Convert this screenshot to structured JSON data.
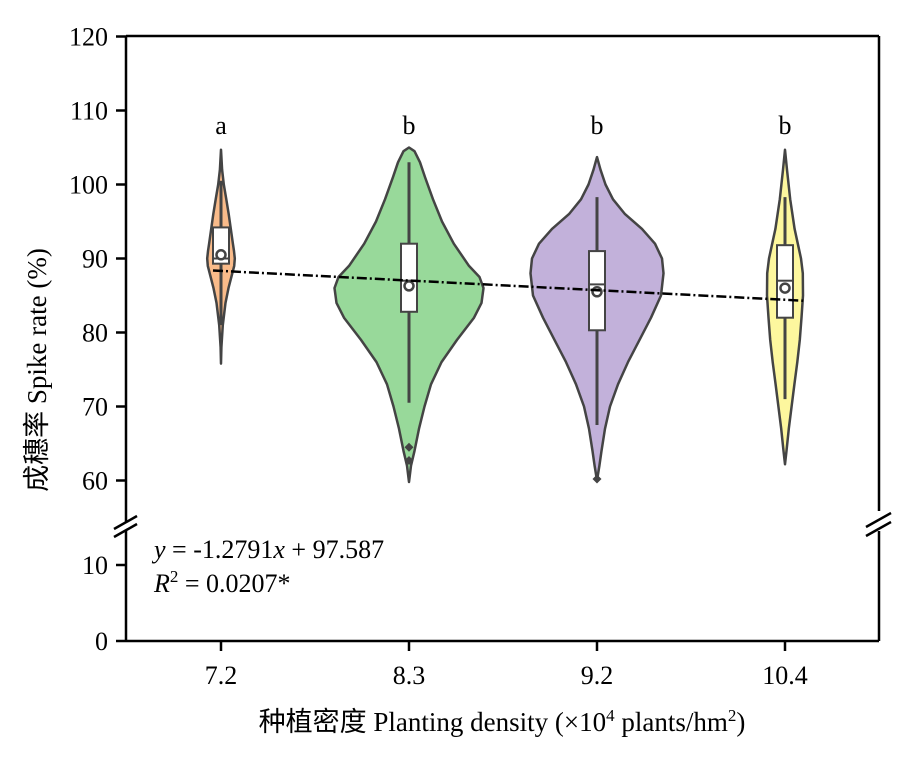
{
  "chart_data": {
    "type": "violin",
    "xlabel": "种植密度 Planting density (×10",
    "xlabel_sup": "4",
    "xlabel_tail": " plants/hm",
    "xlabel_sup2": "2",
    "xlabel_end": ")",
    "ylabel": "成穗率 Spike rate (%)",
    "categories": [
      "7.2",
      "8.3",
      "9.2",
      "10.4"
    ],
    "x_values": [
      7.2,
      8.3,
      9.2,
      10.4
    ],
    "yticks_upper": [
      "60",
      "70",
      "80",
      "90",
      "100",
      "110",
      "120"
    ],
    "yticks_lower": [
      "0",
      "10"
    ],
    "ylim_upper": [
      55,
      120
    ],
    "ylim_lower": [
      0,
      15
    ],
    "colors": [
      "#F9BB8A",
      "#98D99A",
      "#C2B1DA",
      "#FDF79E"
    ],
    "letters": [
      "a",
      "b",
      "b",
      "b"
    ],
    "groups": [
      {
        "category": "7.2",
        "q1": 89.3,
        "median": 90.0,
        "q3": 94.2,
        "mean": 90.5,
        "whisker_low": 81.0,
        "whisker_high": 100.5,
        "outliers": [],
        "violin_min": 75.8,
        "violin_max": 104.7,
        "density": [
          [
            75.8,
            0
          ],
          [
            78,
            0.4
          ],
          [
            81,
            1.8
          ],
          [
            84,
            4.5
          ],
          [
            86,
            7.5
          ],
          [
            88,
            11.3
          ],
          [
            89,
            13.2
          ],
          [
            90,
            13.8
          ],
          [
            91,
            13.0
          ],
          [
            92,
            11.9
          ],
          [
            94,
            9.8
          ],
          [
            96,
            7.7
          ],
          [
            98,
            5.3
          ],
          [
            100,
            2.8
          ],
          [
            102,
            1.1
          ],
          [
            104.7,
            0
          ]
        ]
      },
      {
        "category": "8.3",
        "q1": 82.8,
        "median": 87.0,
        "q3": 92.0,
        "mean": 86.3,
        "whisker_low": 70.5,
        "whisker_high": 103.0,
        "outliers": [
          64.5,
          62.7
        ],
        "violin_min": 59.8,
        "violin_max": 105.0,
        "density": [
          [
            59.8,
            0
          ],
          [
            62,
            2
          ],
          [
            64,
            5.5
          ],
          [
            67,
            10
          ],
          [
            70,
            15.5
          ],
          [
            73,
            22
          ],
          [
            76,
            32.5
          ],
          [
            79,
            48
          ],
          [
            82,
            65
          ],
          [
            84,
            72.5
          ],
          [
            86,
            74.5
          ],
          [
            87.5,
            70.5
          ],
          [
            89,
            60
          ],
          [
            92,
            44.8
          ],
          [
            95,
            33
          ],
          [
            98,
            24
          ],
          [
            101,
            16
          ],
          [
            103,
            11
          ],
          [
            104.5,
            5.5
          ],
          [
            105,
            0
          ]
        ]
      },
      {
        "category": "9.2",
        "q1": 80.3,
        "median": 86.5,
        "q3": 91.0,
        "mean": 85.5,
        "whisker_low": 67.5,
        "whisker_high": 98.3,
        "outliers": [
          60.2
        ],
        "violin_min": 60.0,
        "violin_max": 103.7,
        "density": [
          [
            60,
            0
          ],
          [
            62,
            2.4
          ],
          [
            64,
            4.5
          ],
          [
            67,
            8
          ],
          [
            70,
            13
          ],
          [
            73,
            21
          ],
          [
            76,
            31
          ],
          [
            79,
            42.5
          ],
          [
            82,
            54
          ],
          [
            85,
            64
          ],
          [
            88,
            66.5
          ],
          [
            90,
            65
          ],
          [
            92,
            58
          ],
          [
            94,
            45
          ],
          [
            96,
            28
          ],
          [
            98,
            16
          ],
          [
            100,
            8.5
          ],
          [
            102,
            3.5
          ],
          [
            103.7,
            0
          ]
        ]
      },
      {
        "category": "10.4",
        "q1": 82.0,
        "median": 87.0,
        "q3": 91.8,
        "mean": 86.0,
        "whisker_low": 71.0,
        "whisker_high": 98.3,
        "outliers": [],
        "violin_min": 62.2,
        "violin_max": 104.7,
        "density": [
          [
            62.2,
            0
          ],
          [
            64,
            1.5
          ],
          [
            67,
            3.8
          ],
          [
            70,
            6.6
          ],
          [
            73,
            9.4
          ],
          [
            76,
            12.3
          ],
          [
            79,
            14.8
          ],
          [
            82,
            16.5
          ],
          [
            85,
            18
          ],
          [
            88,
            17.8
          ],
          [
            90,
            16
          ],
          [
            92,
            12.8
          ],
          [
            94,
            9.6
          ],
          [
            96,
            7.4
          ],
          [
            98,
            5.2
          ],
          [
            100,
            3.6
          ],
          [
            102,
            2
          ],
          [
            104.7,
            0
          ]
        ]
      }
    ],
    "trendline": {
      "slope": -1.2791,
      "intercept": 97.587,
      "r2": 0.0207
    },
    "equation_line1": "y = -1.2791x + 97.587",
    "equation_line2": "R2 = 0.0207*"
  },
  "equation": {
    "y": "y",
    "eq1_mid": " = -1.2791",
    "x": "x",
    "eq1_end": " + 97.587",
    "r": "R",
    "r_sup": "2",
    "eq2_end": " = 0.0207*"
  }
}
